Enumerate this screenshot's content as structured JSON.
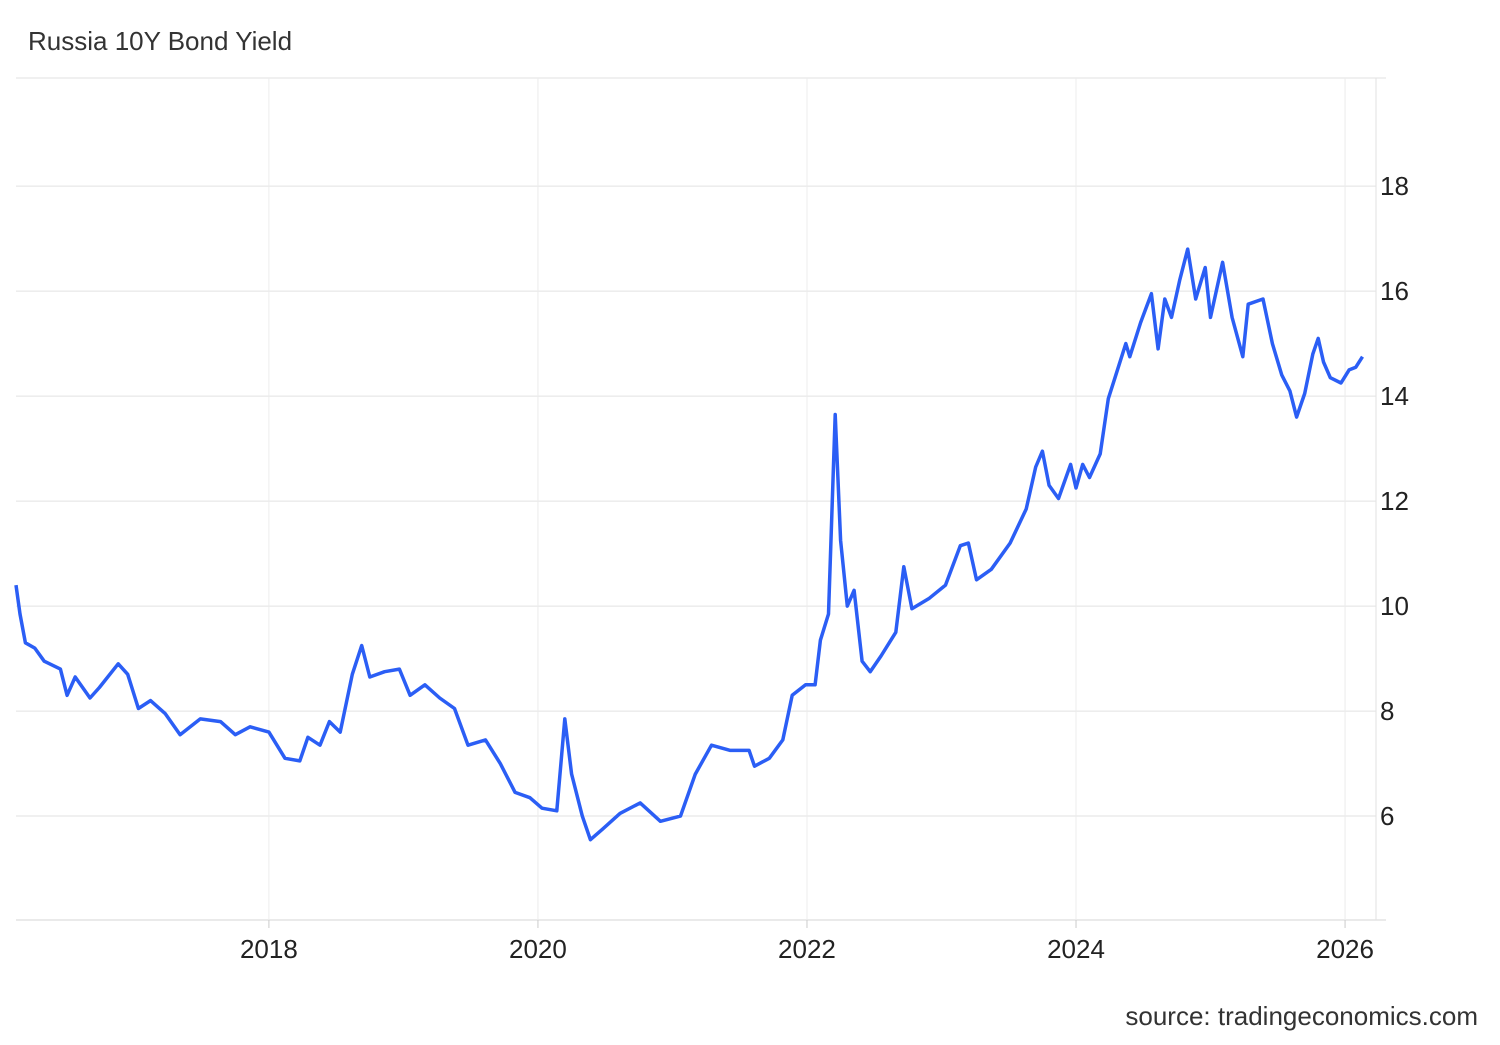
{
  "chart_data": {
    "type": "line",
    "title": "Russia 10Y Bond Yield",
    "source": "source: tradingeconomics.com",
    "x": [
      2016.12,
      2016.15,
      2016.19,
      2016.26,
      2016.33,
      2016.45,
      2016.5,
      2016.56,
      2016.67,
      2016.74,
      2016.88,
      2016.95,
      2017.03,
      2017.12,
      2017.23,
      2017.34,
      2017.49,
      2017.64,
      2017.75,
      2017.86,
      2018.0,
      2018.12,
      2018.23,
      2018.29,
      2018.38,
      2018.45,
      2018.53,
      2018.62,
      2018.69,
      2018.75,
      2018.86,
      2018.97,
      2019.05,
      2019.16,
      2019.27,
      2019.38,
      2019.48,
      2019.61,
      2019.72,
      2019.83,
      2019.94,
      2020.03,
      2020.14,
      2020.2,
      2020.25,
      2020.33,
      2020.39,
      2020.48,
      2020.61,
      2020.76,
      2020.91,
      2021.06,
      2021.17,
      2021.29,
      2021.43,
      2021.57,
      2021.61,
      2021.72,
      2021.82,
      2021.89,
      2021.99,
      2022.06,
      2022.1,
      2022.16,
      2022.21,
      2022.25,
      2022.3,
      2022.35,
      2022.41,
      2022.47,
      2022.55,
      2022.66,
      2022.72,
      2022.78,
      2022.91,
      2023.03,
      2023.14,
      2023.2,
      2023.26,
      2023.37,
      2023.51,
      2023.63,
      2023.7,
      2023.75,
      2023.8,
      2023.87,
      2023.96,
      2024.0,
      2024.05,
      2024.1,
      2024.18,
      2024.24,
      2024.29,
      2024.37,
      2024.4,
      2024.48,
      2024.56,
      2024.61,
      2024.66,
      2024.71,
      2024.77,
      2024.83,
      2024.89,
      2024.96,
      2025.0,
      2025.09,
      2025.16,
      2025.24,
      2025.28,
      2025.39,
      2025.46,
      2025.53,
      2025.59,
      2025.64,
      2025.7,
      2025.76,
      2025.8,
      2025.84,
      2025.89,
      2025.97,
      2026.03,
      2026.08,
      2026.13
    ],
    "series": [
      {
        "name": "Russia 10Y Bond Yield",
        "color": "#2b5ef5",
        "values": [
          10.4,
          9.85,
          9.3,
          9.2,
          8.95,
          8.8,
          8.3,
          8.65,
          8.25,
          8.45,
          8.9,
          8.7,
          8.05,
          8.2,
          7.95,
          7.55,
          7.85,
          7.8,
          7.55,
          7.7,
          7.6,
          7.1,
          7.05,
          7.5,
          7.35,
          7.8,
          7.6,
          8.7,
          9.25,
          8.65,
          8.75,
          8.8,
          8.3,
          8.5,
          8.25,
          8.05,
          7.35,
          7.45,
          7.0,
          6.45,
          6.35,
          6.15,
          6.1,
          7.85,
          6.8,
          6.0,
          5.55,
          5.75,
          6.05,
          6.25,
          5.9,
          6.0,
          6.8,
          7.35,
          7.25,
          7.25,
          6.95,
          7.1,
          7.45,
          8.3,
          8.5,
          8.5,
          9.35,
          9.85,
          13.65,
          11.25,
          10.0,
          10.3,
          8.95,
          8.75,
          9.05,
          9.5,
          10.75,
          9.95,
          10.15,
          10.4,
          11.15,
          11.2,
          10.5,
          10.7,
          11.2,
          11.85,
          12.65,
          12.95,
          12.3,
          12.05,
          12.7,
          12.25,
          12.7,
          12.45,
          12.9,
          13.95,
          14.35,
          15.0,
          14.75,
          15.4,
          15.95,
          14.9,
          15.85,
          15.5,
          16.2,
          16.8,
          15.85,
          16.45,
          15.5,
          16.55,
          15.5,
          14.75,
          15.75,
          15.85,
          15.0,
          14.4,
          14.1,
          13.6,
          14.05,
          14.8,
          15.1,
          14.65,
          14.35,
          14.25,
          14.5,
          14.55,
          14.75
        ]
      }
    ],
    "xlim": [
      2016.12,
      2026.23
    ],
    "xticks": [
      2018,
      2020,
      2022,
      2024,
      2026
    ],
    "ylim": [
      4.02,
      20.06
    ],
    "yticks": [
      6,
      8,
      10,
      12,
      14,
      16,
      18
    ],
    "grid": true
  }
}
